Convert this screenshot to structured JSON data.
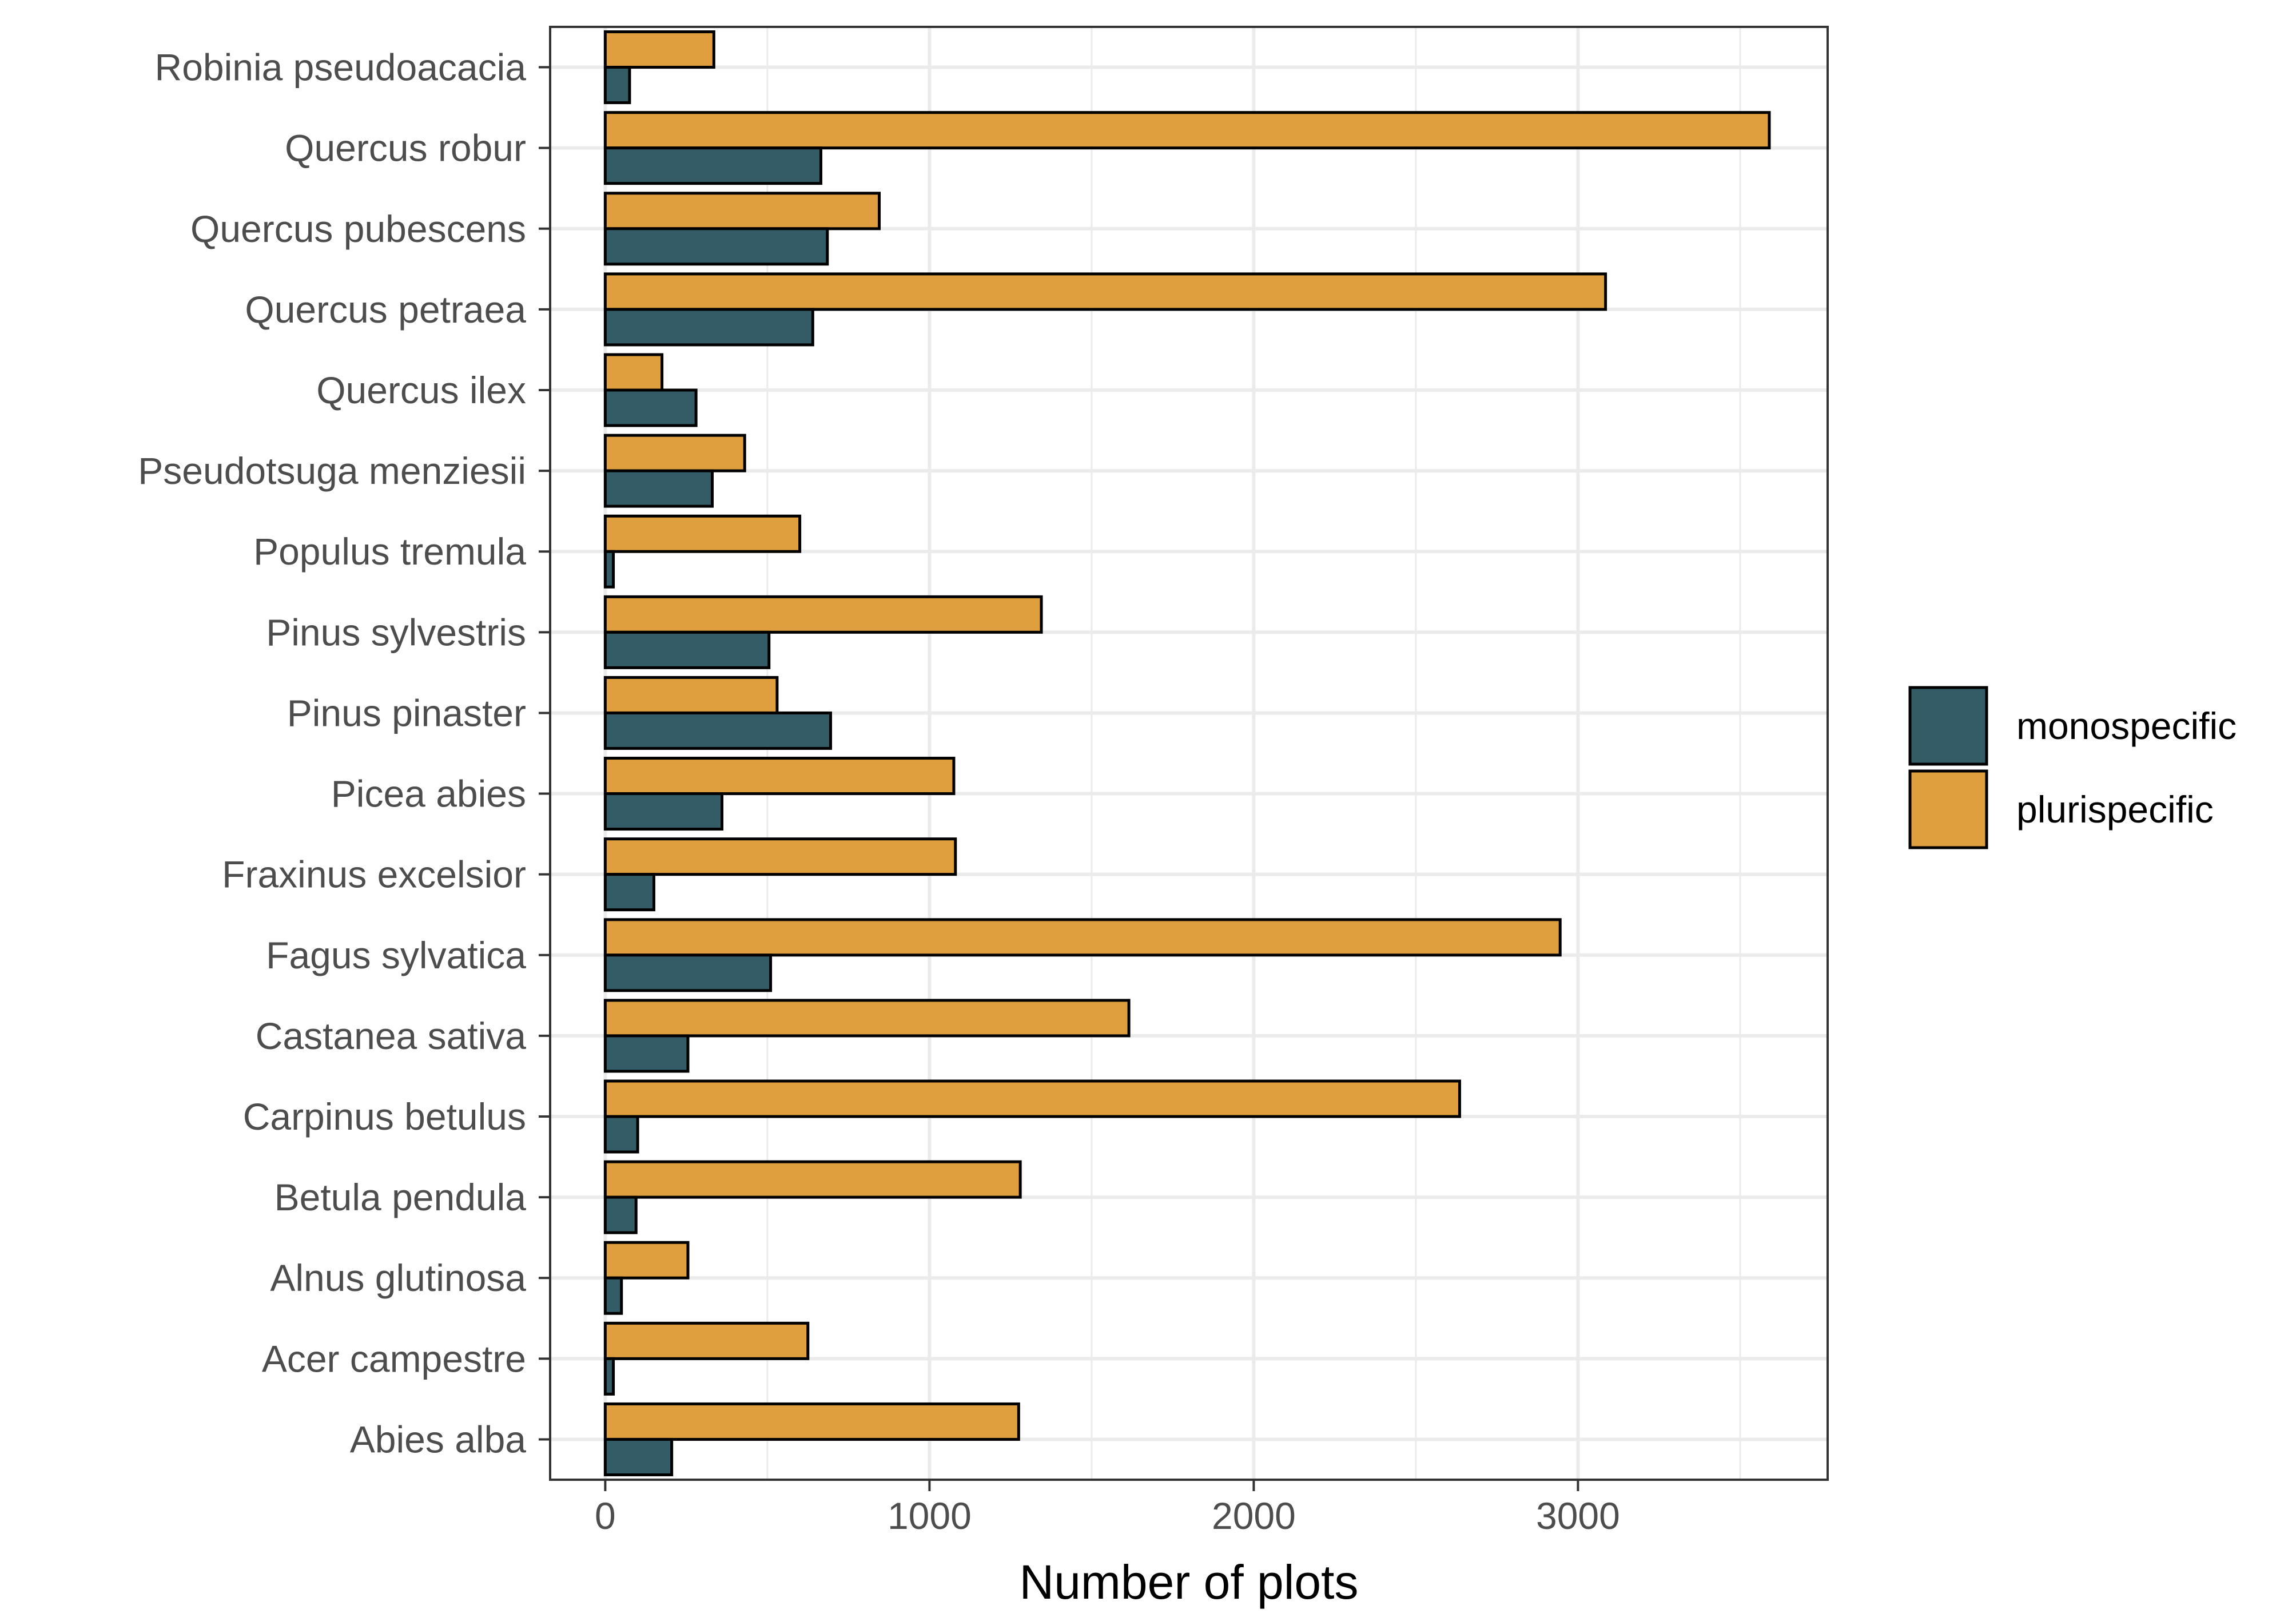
{
  "chart_data": {
    "type": "bar",
    "orientation": "horizontal",
    "title": "",
    "xlabel": "Number of plots",
    "ylabel": "",
    "xlim": [
      -170,
      3770
    ],
    "xticks": [
      0,
      1000,
      2000,
      3000
    ],
    "xtick_labels": [
      "0",
      "1000",
      "2000",
      "3000"
    ],
    "grid": true,
    "legend_position": "right",
    "categories": [
      "Robinia pseudoacacia",
      "Quercus robur",
      "Quercus pubescens",
      "Quercus petraea",
      "Quercus ilex",
      "Pseudotsuga menziesii",
      "Populus tremula",
      "Pinus sylvestris",
      "Pinus pinaster",
      "Picea abies",
      "Fraxinus excelsior",
      "Fagus sylvatica",
      "Castanea sativa",
      "Carpinus betulus",
      "Betula pendula",
      "Alnus glutinosa",
      "Acer campestre",
      "Abies alba"
    ],
    "series": [
      {
        "name": "plurispecific",
        "color": "#E09F3E",
        "values": [
          335,
          3590,
          845,
          3085,
          175,
          430,
          600,
          1345,
          530,
          1075,
          1080,
          2945,
          1615,
          2635,
          1280,
          255,
          625,
          1275
        ]
      },
      {
        "name": "monospecific",
        "color": "#335C67",
        "values": [
          75,
          665,
          685,
          640,
          280,
          330,
          25,
          505,
          695,
          360,
          150,
          510,
          255,
          100,
          95,
          50,
          25,
          205
        ]
      }
    ],
    "legend": [
      "monospecific",
      "plurispecific"
    ]
  }
}
